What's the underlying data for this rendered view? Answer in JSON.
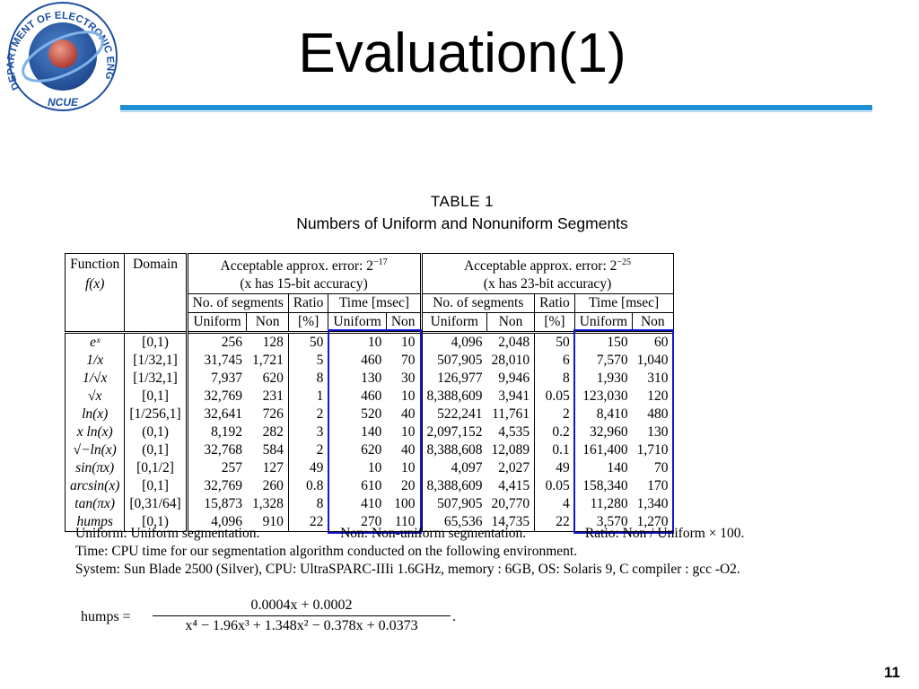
{
  "logo": {
    "arc_text": "DEPARTMENT OF ELECTRONIC ENGINEERING",
    "name": "NCUE"
  },
  "title": "Evaluation(1)",
  "table": {
    "caption_1": "TABLE 1",
    "caption_2": "Numbers of Uniform and Nonuniform Segments",
    "header": {
      "function_1": "Function",
      "function_2": "f(x)",
      "domain": "Domain",
      "group_a_1": "Acceptable approx. error: 2",
      "group_a_exp": "−17",
      "group_a_2": "(x has 15-bit accuracy)",
      "group_b_1": "Acceptable approx. error: 2",
      "group_b_exp": "−25",
      "group_b_2": "(x has 23-bit accuracy)",
      "segments": "No. of segments",
      "ratio": "Ratio",
      "ratio_unit": "[%]",
      "time": "Time [msec]",
      "uniform": "Uniform",
      "non": "Non"
    },
    "rows": [
      [
        "eˣ",
        "[0,1)",
        "256",
        "128",
        "50",
        "10",
        "10",
        "4,096",
        "2,048",
        "50",
        "150",
        "60"
      ],
      [
        "1/x",
        "[1/32,1]",
        "31,745",
        "1,721",
        "5",
        "460",
        "70",
        "507,905",
        "28,010",
        "6",
        "7,570",
        "1,040"
      ],
      [
        "1/√x",
        "[1/32,1]",
        "7,937",
        "620",
        "8",
        "130",
        "30",
        "126,977",
        "9,946",
        "8",
        "1,930",
        "310"
      ],
      [
        "√x",
        "[0,1]",
        "32,769",
        "231",
        "1",
        "460",
        "10",
        "8,388,609",
        "3,941",
        "0.05",
        "123,030",
        "120"
      ],
      [
        "ln(x)",
        "[1/256,1]",
        "32,641",
        "726",
        "2",
        "520",
        "40",
        "522,241",
        "11,761",
        "2",
        "8,410",
        "480"
      ],
      [
        "x ln(x)",
        "(0,1)",
        "8,192",
        "282",
        "3",
        "140",
        "10",
        "2,097,152",
        "4,535",
        "0.2",
        "32,960",
        "130"
      ],
      [
        "√−ln(x)",
        "(0,1]",
        "32,768",
        "584",
        "2",
        "620",
        "40",
        "8,388,608",
        "12,089",
        "0.1",
        "161,400",
        "1,710"
      ],
      [
        "sin(πx)",
        "[0,1/2]",
        "257",
        "127",
        "49",
        "10",
        "10",
        "4,097",
        "2,027",
        "49",
        "140",
        "70"
      ],
      [
        "arcsin(x)",
        "[0,1]",
        "32,769",
        "260",
        "0.8",
        "610",
        "20",
        "8,388,609",
        "4,415",
        "0.05",
        "158,340",
        "170"
      ],
      [
        "tan(πx)",
        "[0,31/64]",
        "15,873",
        "1,328",
        "8",
        "410",
        "100",
        "507,905",
        "20,770",
        "4",
        "11,280",
        "1,340"
      ],
      [
        "humps",
        "[0,1)",
        "4,096",
        "910",
        "22",
        "270",
        "110",
        "65,536",
        "14,735",
        "22",
        "3,570",
        "1,270"
      ]
    ]
  },
  "notes": {
    "line1a": "Uniform: Uniform segmentation.",
    "line1b": "Non: Non-uniform segmentation.",
    "line1c": "Ratio: Non / Uniform × 100.",
    "line2": "Time: CPU time for our segmentation algorithm conducted on the following environment.",
    "line3": "System: Sun Blade 2500 (Silver), CPU: UltraSPARC-IIIi 1.6GHz, memory : 6GB, OS: Solaris 9, C compiler : gcc -O2."
  },
  "formula": {
    "lhs": "humps =",
    "numerator": "0.0004x + 0.0002",
    "denominator": "x⁴ − 1.96x³ + 1.348x² − 0.378x + 0.0373",
    "end": "."
  },
  "page_number": "11",
  "colors": {
    "title_rule": "#1e90d6",
    "highlight_box": "#1515d0",
    "logo_blue": "#1d4fa3"
  }
}
